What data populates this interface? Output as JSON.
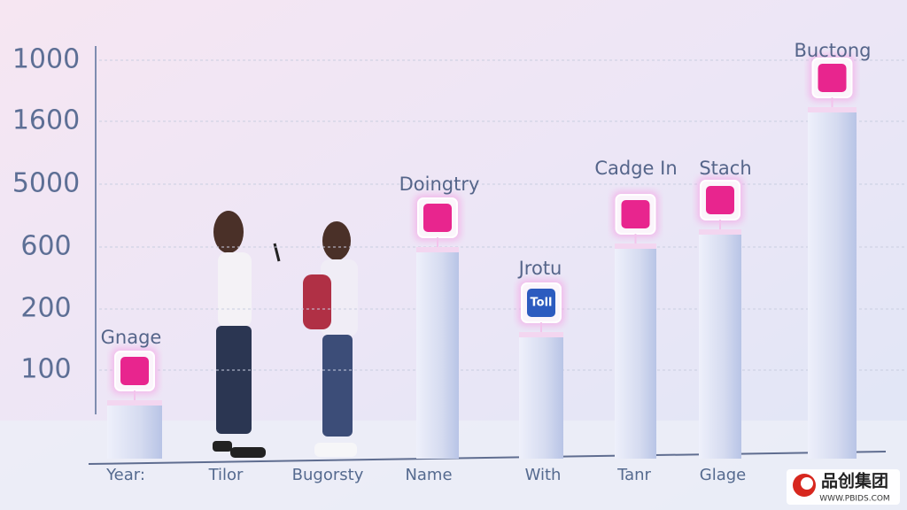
{
  "y_axis_labels": [
    "1000",
    "1600",
    "5000",
    "600",
    "200",
    "100"
  ],
  "bars": [
    {
      "label": "Gnage"
    },
    {
      "label": "Doingtry"
    },
    {
      "label": "Jrotu",
      "icon_text": "Toll"
    },
    {
      "label": "Cadge In"
    },
    {
      "label": "Stach"
    },
    {
      "label": "Buctong"
    }
  ],
  "x_axis_labels": [
    "Year:",
    "Tilor",
    "Bugorsty",
    "Name",
    "With",
    "Tanr",
    "Glage"
  ],
  "watermark": {
    "brand": "品创集团",
    "url": "WWW.PBIDS.COM"
  }
}
